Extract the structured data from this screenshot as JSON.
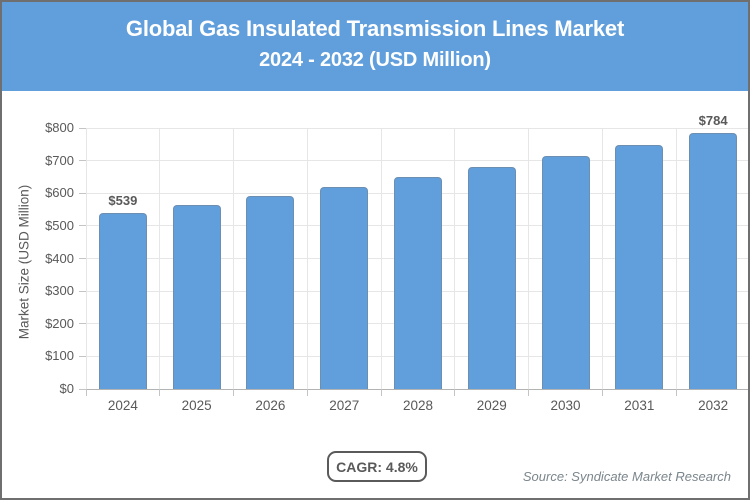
{
  "header": {
    "title_line1": "Global Gas Insulated Transmission Lines Market",
    "title_line2": "2024 - 2032 (USD Million)"
  },
  "chart_data": {
    "type": "bar",
    "title": "Global Gas Insulated Transmission Lines Market 2024 - 2032 (USD Million)",
    "categories": [
      "2024",
      "2025",
      "2026",
      "2027",
      "2028",
      "2029",
      "2030",
      "2031",
      "2032"
    ],
    "values": [
      539,
      565,
      592,
      620,
      650,
      681,
      714,
      748,
      784
    ],
    "point_labels": [
      "$539",
      "",
      "",
      "",
      "",
      "",
      "",
      "",
      "$784"
    ],
    "xlabel": "",
    "ylabel": "Market Size (USD Million)",
    "ylim": [
      0,
      800
    ],
    "ytick_step": 100,
    "ytick_labels": [
      "$0",
      "$100",
      "$200",
      "$300",
      "$400",
      "$500",
      "$600",
      "$700",
      "$800"
    ],
    "grid": true,
    "legend": false,
    "bar_color": "#609edc"
  },
  "footer": {
    "cagr_label": "CAGR: 4.8%",
    "source": "Source: Syndicate Market Research"
  }
}
